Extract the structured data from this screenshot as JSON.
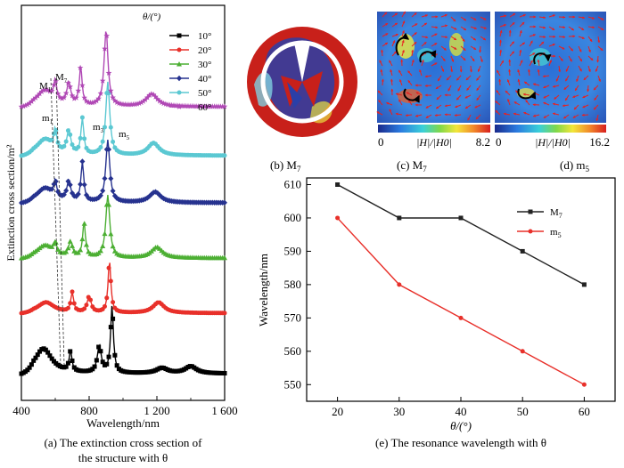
{
  "figure": {
    "panel_a": {
      "caption_line1": "(a) The extinction cross section of",
      "caption_line2": "the structure with θ",
      "ylabel": "Extinction cross section/m²",
      "xlabel": "Wavelength/nm",
      "xticks": [
        "400",
        "800",
        "1 200",
        "1 600"
      ],
      "legend_title": "θ/(°)",
      "legend": [
        {
          "label": "10°",
          "color": "#000000",
          "marker": "square"
        },
        {
          "label": "20°",
          "color": "#e8302a",
          "marker": "circle"
        },
        {
          "label": "30°",
          "color": "#4caf33",
          "marker": "triangle"
        },
        {
          "label": "40°",
          "color": "#26328f",
          "marker": "diamond"
        },
        {
          "label": "50°",
          "color": "#5bc8d2",
          "marker": "circle"
        },
        {
          "label": "60°",
          "color": "#b048b5",
          "marker": "star"
        }
      ],
      "annotations": {
        "M1": "M",
        "M1sub": "1",
        "M7": "M",
        "M7sub": "7",
        "m1": "m",
        "m1sub": "1",
        "m3": "m",
        "m3sub": "3",
        "m5": "m",
        "m5sub": "5"
      }
    },
    "panel_b": {
      "caption": "(b) M",
      "sub": "7"
    },
    "panel_c": {
      "caption": "(c) M",
      "sub": "7",
      "cbar_min": "0",
      "cbar_max": "8.2",
      "cbar_label": "|H|/|H0|"
    },
    "panel_d": {
      "caption": "(d) m",
      "sub": "5",
      "cbar_min": "0",
      "cbar_max": "16.2",
      "cbar_label": "|H|/|H0|"
    },
    "panel_e": {
      "caption": "(e) The resonance wavelength with θ",
      "xlabel": "θ/(°)",
      "ylabel": "Wavelength/nm"
    }
  },
  "chart_data": [
    {
      "type": "line",
      "title": "",
      "xlabel": "Wavelength/nm",
      "ylabel": "Extinction cross section/m²",
      "xlim": [
        400,
        1600
      ],
      "note": "stacked spectra offset vertically",
      "series": [
        {
          "name": "10°",
          "color": "#000000",
          "peaks_nm": [
            540,
            690,
            860,
            930,
            1230,
            1400
          ]
        },
        {
          "name": "20°",
          "color": "#e8302a",
          "peaks_nm": [
            545,
            700,
            800,
            920,
            1210
          ]
        },
        {
          "name": "30°",
          "color": "#4caf33",
          "peaks_nm": [
            540,
            600,
            690,
            770,
            910,
            1200
          ]
        },
        {
          "name": "40°",
          "color": "#26328f",
          "peaks_nm": [
            540,
            600,
            680,
            760,
            910,
            1190
          ]
        },
        {
          "name": "50°",
          "color": "#5bc8d2",
          "peaks_nm": [
            540,
            600,
            680,
            760,
            910,
            1180
          ]
        },
        {
          "name": "60°",
          "color": "#b048b5",
          "peaks_nm": [
            540,
            600,
            680,
            750,
            900,
            1170
          ]
        }
      ]
    },
    {
      "type": "line",
      "title": "",
      "xlabel": "θ/(°)",
      "ylabel": "Wavelength/nm",
      "xlim": [
        15,
        65
      ],
      "ylim": [
        545,
        612
      ],
      "xticks": [
        20,
        30,
        40,
        50,
        60
      ],
      "yticks": [
        550,
        560,
        570,
        580,
        590,
        600,
        610
      ],
      "legend_position": "top-right",
      "series": [
        {
          "name": "M7",
          "label_main": "M",
          "label_sub": "7",
          "color": "#222222",
          "marker": "square",
          "x": [
            20,
            30,
            40,
            50,
            60
          ],
          "y": [
            610,
            600,
            600,
            590,
            580
          ]
        },
        {
          "name": "m5",
          "label_main": "m",
          "label_sub": "5",
          "color": "#e8302a",
          "marker": "circle",
          "x": [
            20,
            30,
            40,
            50,
            60
          ],
          "y": [
            600,
            580,
            570,
            560,
            550
          ]
        }
      ]
    }
  ]
}
